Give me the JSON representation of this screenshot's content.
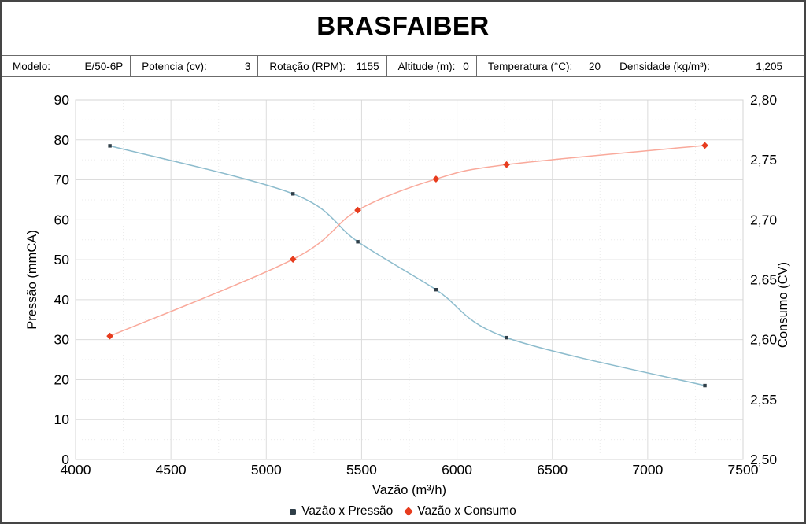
{
  "title": "BRASFAIBER",
  "params": [
    {
      "label": "Modelo:",
      "value": "E/50-6P"
    },
    {
      "label": "Potencia (cv):",
      "value": "3"
    },
    {
      "label": "Rotação (RPM):",
      "value": "1155"
    },
    {
      "label": "Altitude (m):",
      "value": "0"
    },
    {
      "label": "Temperatura (°C):",
      "value": "20"
    },
    {
      "label": "Densidade (kg/m³):",
      "value": "1,205"
    }
  ],
  "chart_data": {
    "type": "line",
    "title": "",
    "xlabel": "Vazão (m³/h)",
    "ylabel_left": "Pressão (mmCA)",
    "ylabel_right": "Consumo (CV)",
    "x_range": [
      4000,
      7500
    ],
    "x_ticks": [
      4000,
      4500,
      5000,
      5500,
      6000,
      6500,
      7000,
      7500
    ],
    "x_minor_step": 250,
    "left_range": [
      0,
      90
    ],
    "left_ticks": [
      0,
      10,
      20,
      30,
      40,
      50,
      60,
      70,
      80,
      90
    ],
    "left_minor_step": 5,
    "right_range": [
      2.5,
      2.8
    ],
    "right_ticks": [
      2.5,
      2.55,
      2.6,
      2.65,
      2.7,
      2.75,
      2.8
    ],
    "right_tick_labels": [
      "2,50",
      "2,55",
      "2,60",
      "2,65",
      "2,70",
      "2,75",
      "2,80"
    ],
    "grid": "major-solid minor-dotted",
    "legend_position": "bottom",
    "x": [
      4180,
      5140,
      5480,
      5890,
      6260,
      7300
    ],
    "series": [
      {
        "name": "Vazão x Pressão",
        "axis": "left",
        "values": [
          78.5,
          66.5,
          54.5,
          42.5,
          30.5,
          18.5
        ],
        "line_color": "#8dbccd",
        "marker": "square",
        "marker_color": "#2f3e48"
      },
      {
        "name": "Vazão x Consumo",
        "axis": "right",
        "values": [
          2.603,
          2.667,
          2.708,
          2.734,
          2.746,
          2.762
        ],
        "line_color": "#f9a99b",
        "marker": "diamond",
        "marker_color": "#e73c1e"
      }
    ],
    "colors": {
      "major_grid": "#dcdcdc",
      "minor_grid": "#ebebeb",
      "plot_border": "#d4d4d4"
    }
  }
}
